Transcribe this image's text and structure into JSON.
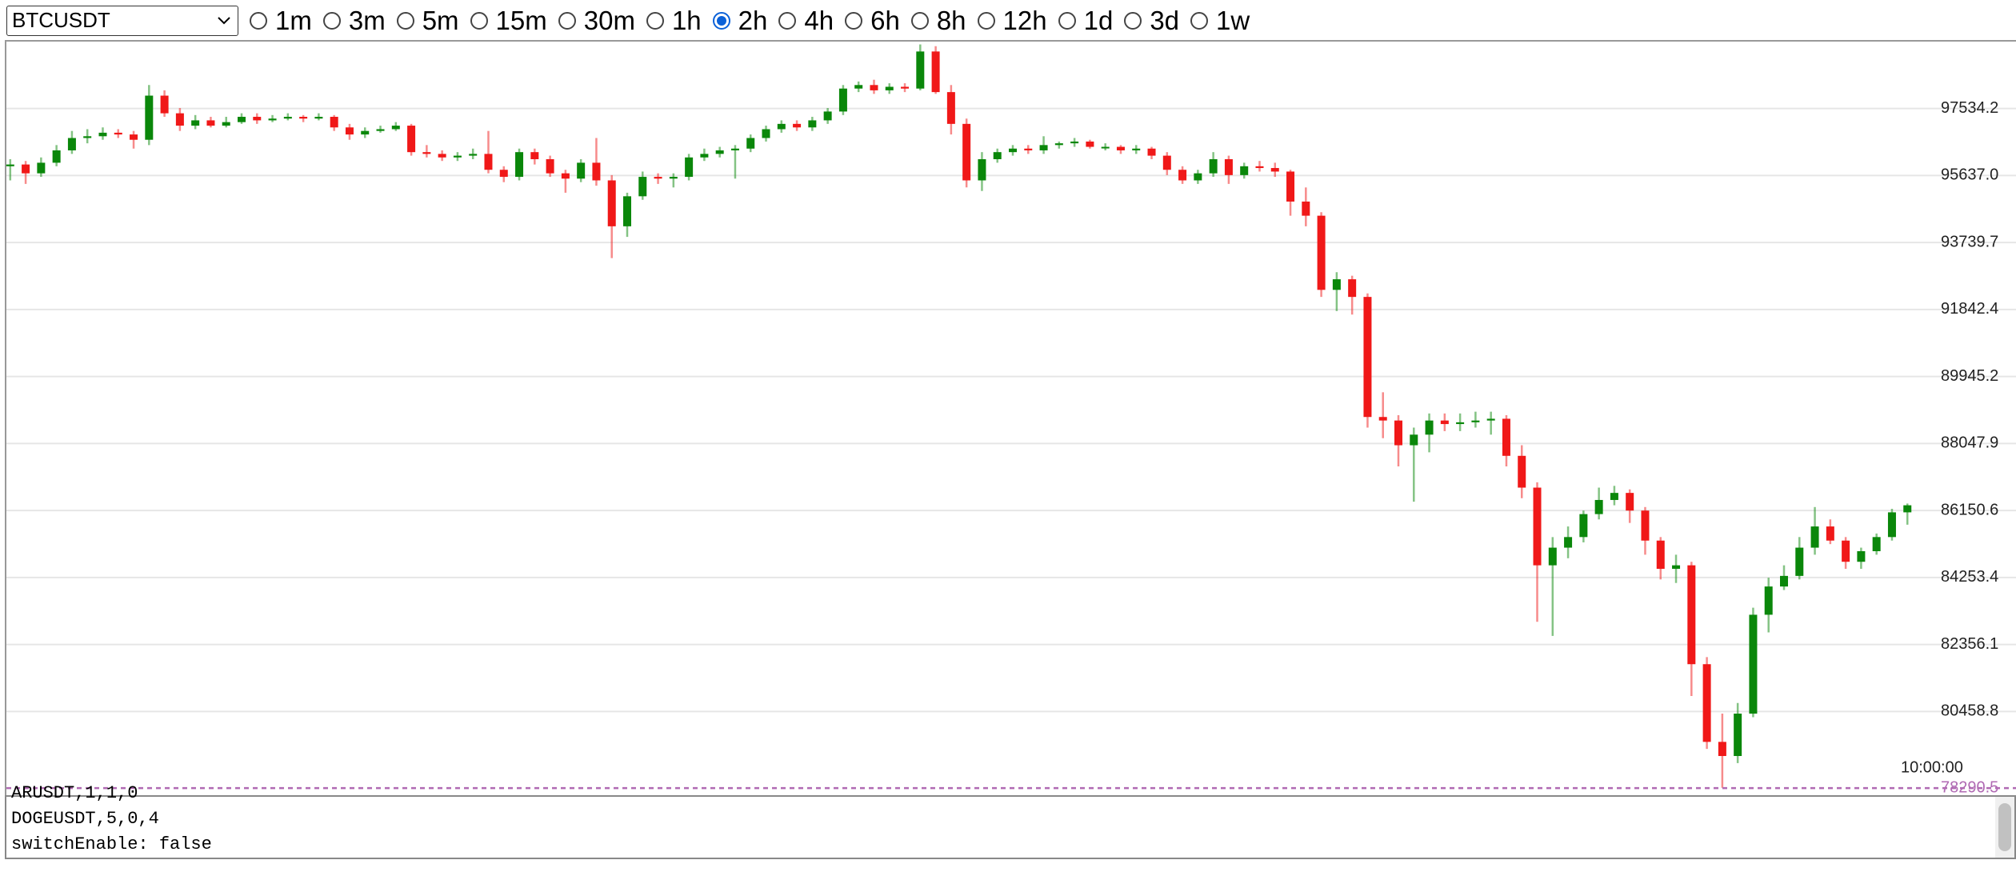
{
  "symbol_select": "BTCUSDT",
  "intervals": [
    "1m",
    "3m",
    "5m",
    "15m",
    "30m",
    "1h",
    "2h",
    "4h",
    "6h",
    "8h",
    "12h",
    "1d",
    "3d",
    "1w"
  ],
  "selected_interval": "2h",
  "chart_data": {
    "type": "candlestick",
    "up_color": "#0a870a",
    "down_color": "#f01818",
    "ylim": [
      78090,
      99430
    ],
    "yticks": [
      80458.8,
      82356.1,
      84253.4,
      86150.6,
      88047.9,
      89945.2,
      91842.4,
      {
        "value": 93739.7,
        "label": "93739.7"
      },
      {
        "value": 95637,
        "label": "95637.0"
      },
      97534.2
    ],
    "grid": true,
    "price_line": {
      "value": 78290.5,
      "color": "#b06ab3"
    },
    "time_label": "10:00:00",
    "ohlc": [
      [
        95900,
        96100,
        95500,
        95950
      ],
      [
        95950,
        96050,
        95400,
        95700
      ],
      [
        95700,
        96150,
        95600,
        96000
      ],
      [
        96000,
        96500,
        95900,
        96350
      ],
      [
        96350,
        96900,
        96250,
        96700
      ],
      [
        96700,
        96950,
        96550,
        96750
      ],
      [
        96750,
        97000,
        96650,
        96850
      ],
      [
        96850,
        96950,
        96700,
        96800
      ],
      [
        96800,
        96900,
        96400,
        96650
      ],
      [
        96650,
        98200,
        96500,
        97900
      ],
      [
        97900,
        98050,
        97300,
        97400
      ],
      [
        97400,
        97550,
        96900,
        97050
      ],
      [
        97050,
        97350,
        96950,
        97200
      ],
      [
        97200,
        97300,
        97000,
        97050
      ],
      [
        97050,
        97300,
        97000,
        97150
      ],
      [
        97150,
        97400,
        97100,
        97300
      ],
      [
        97300,
        97400,
        97100,
        97200
      ],
      [
        97200,
        97350,
        97150,
        97250
      ],
      [
        97250,
        97400,
        97200,
        97300
      ],
      [
        97300,
        97350,
        97150,
        97250
      ],
      [
        97250,
        97400,
        97200,
        97300
      ],
      [
        97300,
        97350,
        96900,
        97000
      ],
      [
        97000,
        97100,
        96650,
        96800
      ],
      [
        96800,
        97000,
        96700,
        96900
      ],
      [
        96900,
        97050,
        96850,
        96950
      ],
      [
        96950,
        97150,
        96900,
        97050
      ],
      [
        97050,
        97100,
        96200,
        96300
      ],
      [
        96300,
        96500,
        96150,
        96250
      ],
      [
        96250,
        96350,
        96050,
        96150
      ],
      [
        96150,
        96300,
        96050,
        96200
      ],
      [
        96200,
        96400,
        96100,
        96250
      ],
      [
        96250,
        96900,
        95700,
        95800
      ],
      [
        95800,
        95900,
        95450,
        95600
      ],
      [
        95600,
        96400,
        95500,
        96300
      ],
      [
        96300,
        96400,
        95950,
        96100
      ],
      [
        96100,
        96200,
        95600,
        95700
      ],
      [
        95700,
        95800,
        95150,
        95550
      ],
      [
        95550,
        96100,
        95450,
        96000
      ],
      [
        96000,
        96700,
        95350,
        95500
      ],
      [
        95500,
        95650,
        93300,
        94200
      ],
      [
        94200,
        95150,
        93900,
        95050
      ],
      [
        95050,
        95750,
        94950,
        95600
      ],
      [
        95600,
        95700,
        95400,
        95550
      ],
      [
        95550,
        95700,
        95300,
        95600
      ],
      [
        95600,
        96250,
        95500,
        96150
      ],
      [
        96150,
        96400,
        96050,
        96250
      ],
      [
        96250,
        96450,
        96150,
        96350
      ],
      [
        96350,
        96500,
        95550,
        96400
      ],
      [
        96400,
        96800,
        96300,
        96700
      ],
      [
        96700,
        97050,
        96600,
        96950
      ],
      [
        96950,
        97200,
        96850,
        97100
      ],
      [
        97100,
        97200,
        96900,
        97000
      ],
      [
        97000,
        97300,
        96900,
        97200
      ],
      [
        97200,
        97550,
        97100,
        97450
      ],
      [
        97450,
        98200,
        97350,
        98100
      ],
      [
        98100,
        98300,
        98000,
        98200
      ],
      [
        98200,
        98350,
        97950,
        98050
      ],
      [
        98050,
        98250,
        97950,
        98150
      ],
      [
        98150,
        98250,
        98000,
        98100
      ],
      [
        98100,
        99350,
        98050,
        99150
      ],
      [
        99150,
        99300,
        97950,
        98000
      ],
      [
        98000,
        98200,
        96800,
        97100
      ],
      [
        97100,
        97250,
        95300,
        95500
      ],
      [
        95500,
        96300,
        95200,
        96100
      ],
      [
        96100,
        96400,
        96000,
        96300
      ],
      [
        96300,
        96500,
        96200,
        96400
      ],
      [
        96400,
        96500,
        96250,
        96350
      ],
      [
        96350,
        96750,
        96250,
        96500
      ],
      [
        96500,
        96600,
        96400,
        96550
      ],
      [
        96550,
        96700,
        96450,
        96600
      ],
      [
        96600,
        96650,
        96400,
        96450
      ],
      [
        96450,
        96550,
        96350,
        96450
      ],
      [
        96450,
        96500,
        96250,
        96350
      ],
      [
        96350,
        96500,
        96250,
        96400
      ],
      [
        96400,
        96450,
        96100,
        96200
      ],
      [
        96200,
        96300,
        95650,
        95800
      ],
      [
        95800,
        95900,
        95400,
        95500
      ],
      [
        95500,
        95800,
        95400,
        95700
      ],
      [
        95700,
        96300,
        95600,
        96100
      ],
      [
        96100,
        96200,
        95400,
        95650
      ],
      [
        95650,
        96000,
        95550,
        95900
      ],
      [
        95900,
        96050,
        95750,
        95850
      ],
      [
        95850,
        96000,
        95600,
        95750
      ],
      [
        95750,
        95800,
        94500,
        94900
      ],
      [
        94900,
        95300,
        94200,
        94500
      ],
      [
        94500,
        94600,
        92200,
        92400
      ],
      [
        92400,
        92900,
        91800,
        92700
      ],
      [
        92700,
        92800,
        91700,
        92200
      ],
      [
        92200,
        92300,
        88500,
        88800
      ],
      [
        88800,
        89500,
        88200,
        88700
      ],
      [
        88700,
        88850,
        87400,
        88000
      ],
      [
        88000,
        88500,
        86400,
        88300
      ],
      [
        88300,
        88900,
        87800,
        88700
      ],
      [
        88700,
        88900,
        88400,
        88600
      ],
      [
        88600,
        88900,
        88400,
        88650
      ],
      [
        88650,
        88950,
        88500,
        88700
      ],
      [
        88700,
        88950,
        88300,
        88750
      ],
      [
        88750,
        88850,
        87400,
        87700
      ],
      [
        87700,
        88000,
        86500,
        86800
      ],
      [
        86800,
        86950,
        83000,
        84600
      ],
      [
        84600,
        85400,
        82600,
        85100
      ],
      [
        85100,
        85700,
        84800,
        85400
      ],
      [
        85400,
        86150,
        85250,
        86050
      ],
      [
        86050,
        86800,
        85900,
        86450
      ],
      [
        86450,
        86850,
        86300,
        86650
      ],
      [
        86650,
        86750,
        85800,
        86150
      ],
      [
        86150,
        86250,
        84900,
        85300
      ],
      [
        85300,
        85400,
        84200,
        84500
      ],
      [
        84500,
        84900,
        84100,
        84600
      ],
      [
        84600,
        84700,
        80900,
        81800
      ],
      [
        81800,
        82000,
        79400,
        79600
      ],
      [
        79600,
        80400,
        78300,
        79200
      ],
      [
        79200,
        80700,
        79000,
        80400
      ],
      [
        80400,
        83400,
        80300,
        83200
      ],
      [
        83200,
        84250,
        82700,
        84000
      ],
      [
        84000,
        84600,
        83900,
        84300
      ],
      [
        84300,
        85400,
        84200,
        85100
      ],
      [
        85100,
        86250,
        84900,
        85700
      ],
      [
        85700,
        85900,
        85200,
        85300
      ],
      [
        85300,
        85400,
        84500,
        84700
      ],
      [
        84700,
        85100,
        84500,
        85000
      ],
      [
        85000,
        85500,
        84900,
        85400
      ],
      [
        85400,
        86200,
        85300,
        86100
      ],
      [
        86100,
        86350,
        85750,
        86300
      ]
    ]
  },
  "log_lines": [
    "ARUSDT,1,1,0",
    "DOGEUSDT,5,0,4",
    "switchEnable: false"
  ]
}
